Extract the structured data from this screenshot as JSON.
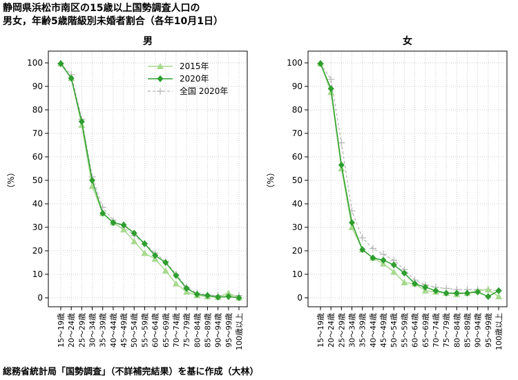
{
  "title_line1": "静岡県浜松市南区の15歳以上国勢調査人口の",
  "title_line2": "男女，年齢5歳階級別未婚者割合（各年10月1日）",
  "source": "総務省統計局「国勢調査」（不詳補完結果）を基に作成（大林）",
  "colors": {
    "s2015": "#a6d98d",
    "s2020": "#2e9e2e",
    "national": "#b4b4b4",
    "grid": "#c8c8c8"
  },
  "chart_data": [
    {
      "type": "line",
      "title": "男",
      "ylabel": "（%）",
      "ylim": [
        0,
        100
      ],
      "yticks": [
        0,
        10,
        20,
        30,
        40,
        50,
        60,
        70,
        80,
        90,
        100
      ],
      "grid": true,
      "legend": "top-right",
      "categories": [
        "15～19歳",
        "20～24歳",
        "25～29歳",
        "30～34歳",
        "35～39歳",
        "40～44歳",
        "45～49歳",
        "50～54歳",
        "55～59歳",
        "60～64歳",
        "65～69歳",
        "70～74歳",
        "75～79歳",
        "80～84歳",
        "85～89歳",
        "90～94歳",
        "95～99歳",
        "100歳以上"
      ],
      "series": [
        {
          "name": "2015年",
          "values": [
            99.7,
            93.5,
            73.5,
            47.5,
            36.0,
            32.0,
            29.0,
            24.0,
            19.0,
            16.5,
            11.5,
            6.0,
            2.5,
            1.0,
            0.5,
            0.3,
            2.0,
            0.0
          ]
        },
        {
          "name": "2020年",
          "values": [
            99.7,
            93.5,
            75.0,
            50.0,
            36.0,
            32.0,
            31.0,
            27.5,
            23.0,
            18.0,
            15.0,
            9.5,
            4.0,
            1.5,
            1.0,
            0.3,
            0.5,
            0.0
          ]
        },
        {
          "name": "全国 2020年",
          "values": [
            99.7,
            95.0,
            76.0,
            51.5,
            38.5,
            33.0,
            30.0,
            26.5,
            23.0,
            19.0,
            15.5,
            10.0,
            4.5,
            2.0,
            1.2,
            1.0,
            1.0,
            1.0
          ]
        }
      ]
    },
    {
      "type": "line",
      "title": "女",
      "ylabel": "（%）",
      "ylim": [
        0,
        100
      ],
      "yticks": [
        0,
        10,
        20,
        30,
        40,
        50,
        60,
        70,
        80,
        90,
        100
      ],
      "grid": true,
      "categories": [
        "15～19歳",
        "20～24歳",
        "25～29歳",
        "30～34歳",
        "35～39歳",
        "40～44歳",
        "45～49歳",
        "50～54歳",
        "55～59歳",
        "60～64歳",
        "65～69歳",
        "70～74歳",
        "75～79歳",
        "80～84歳",
        "85～89歳",
        "90～94歳",
        "95～99歳",
        "100歳以上"
      ],
      "series": [
        {
          "name": "2015年",
          "values": [
            99.7,
            87.5,
            55.0,
            30.0,
            20.5,
            17.0,
            14.5,
            11.0,
            6.5,
            6.0,
            3.0,
            2.5,
            2.0,
            1.5,
            2.0,
            3.0,
            3.5,
            0.5
          ]
        },
        {
          "name": "2020年",
          "values": [
            99.7,
            89.0,
            56.5,
            32.0,
            20.5,
            17.0,
            16.0,
            14.0,
            10.5,
            6.0,
            4.5,
            3.0,
            2.0,
            2.0,
            2.0,
            2.5,
            0.5,
            3.0
          ]
        },
        {
          "name": "全国 2020年",
          "values": [
            99.7,
            93.0,
            66.0,
            37.0,
            25.5,
            21.0,
            18.5,
            16.0,
            12.0,
            7.5,
            5.5,
            4.5,
            4.0,
            3.5,
            3.5,
            3.5,
            3.5,
            3.0
          ]
        }
      ]
    }
  ]
}
